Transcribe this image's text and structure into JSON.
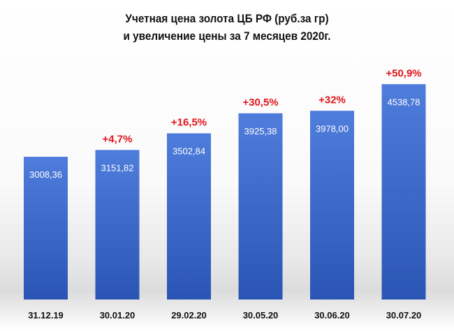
{
  "chart_data": {
    "type": "bar",
    "title_lines": [
      "Учетная цена золота ЦБ РФ  (руб.за гр)",
      "и увеличение  цены за 7 месяцев 2020г."
    ],
    "categories": [
      "31.12.19",
      "30.01.20",
      "29.02.20",
      "30.05.20",
      "30.06.20",
      "30.07.20"
    ],
    "values": [
      3008.36,
      3151.82,
      3502.84,
      3925.38,
      3978.0,
      4538.78
    ],
    "value_labels": [
      "3008,36",
      "3151,82",
      "3502,84",
      "3925,38",
      "3978,00",
      "4538,78"
    ],
    "annotations": [
      "",
      "+4,7%",
      "+16,5%",
      "+30,5%",
      "+32%",
      "+50,9%"
    ],
    "xlabel": "",
    "ylabel": "",
    "grid": false,
    "legend": "none"
  },
  "colors": {
    "bar_top": "#4f7ddc",
    "bar_bottom": "#2a55b4",
    "value_label": "#ffffff",
    "annotation": "#e0151b",
    "tick_label": "#111111"
  }
}
